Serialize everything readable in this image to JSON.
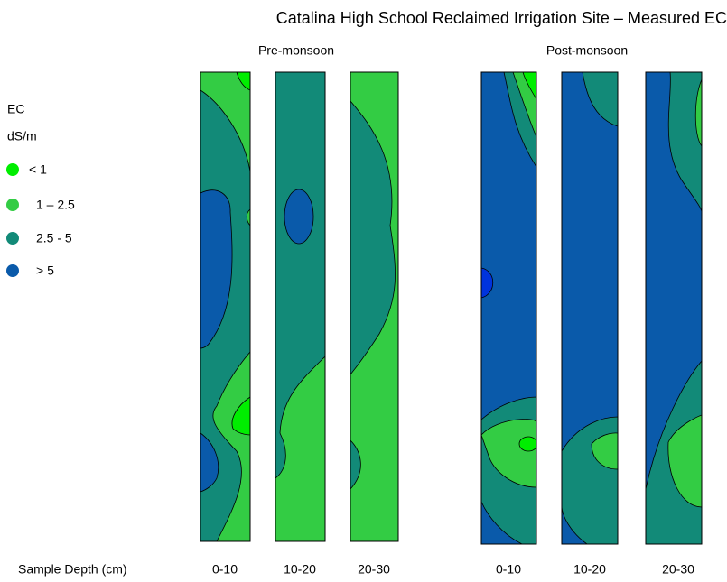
{
  "title": "Catalina High School Reclaimed Irrigation Site – Measured EC",
  "groups": [
    "Pre-monsoon",
    "Post-monsoon"
  ],
  "legend": {
    "title": "EC",
    "unit": "dS/m",
    "items": [
      "< 1",
      "1 – 2.5",
      "2.5 - 5",
      "> 5"
    ]
  },
  "x_axis_label": "Sample Depth (cm)",
  "columns": [
    "0-10",
    "10-20",
    "20-30",
    "0-10",
    "10-20",
    "20-30"
  ]
}
